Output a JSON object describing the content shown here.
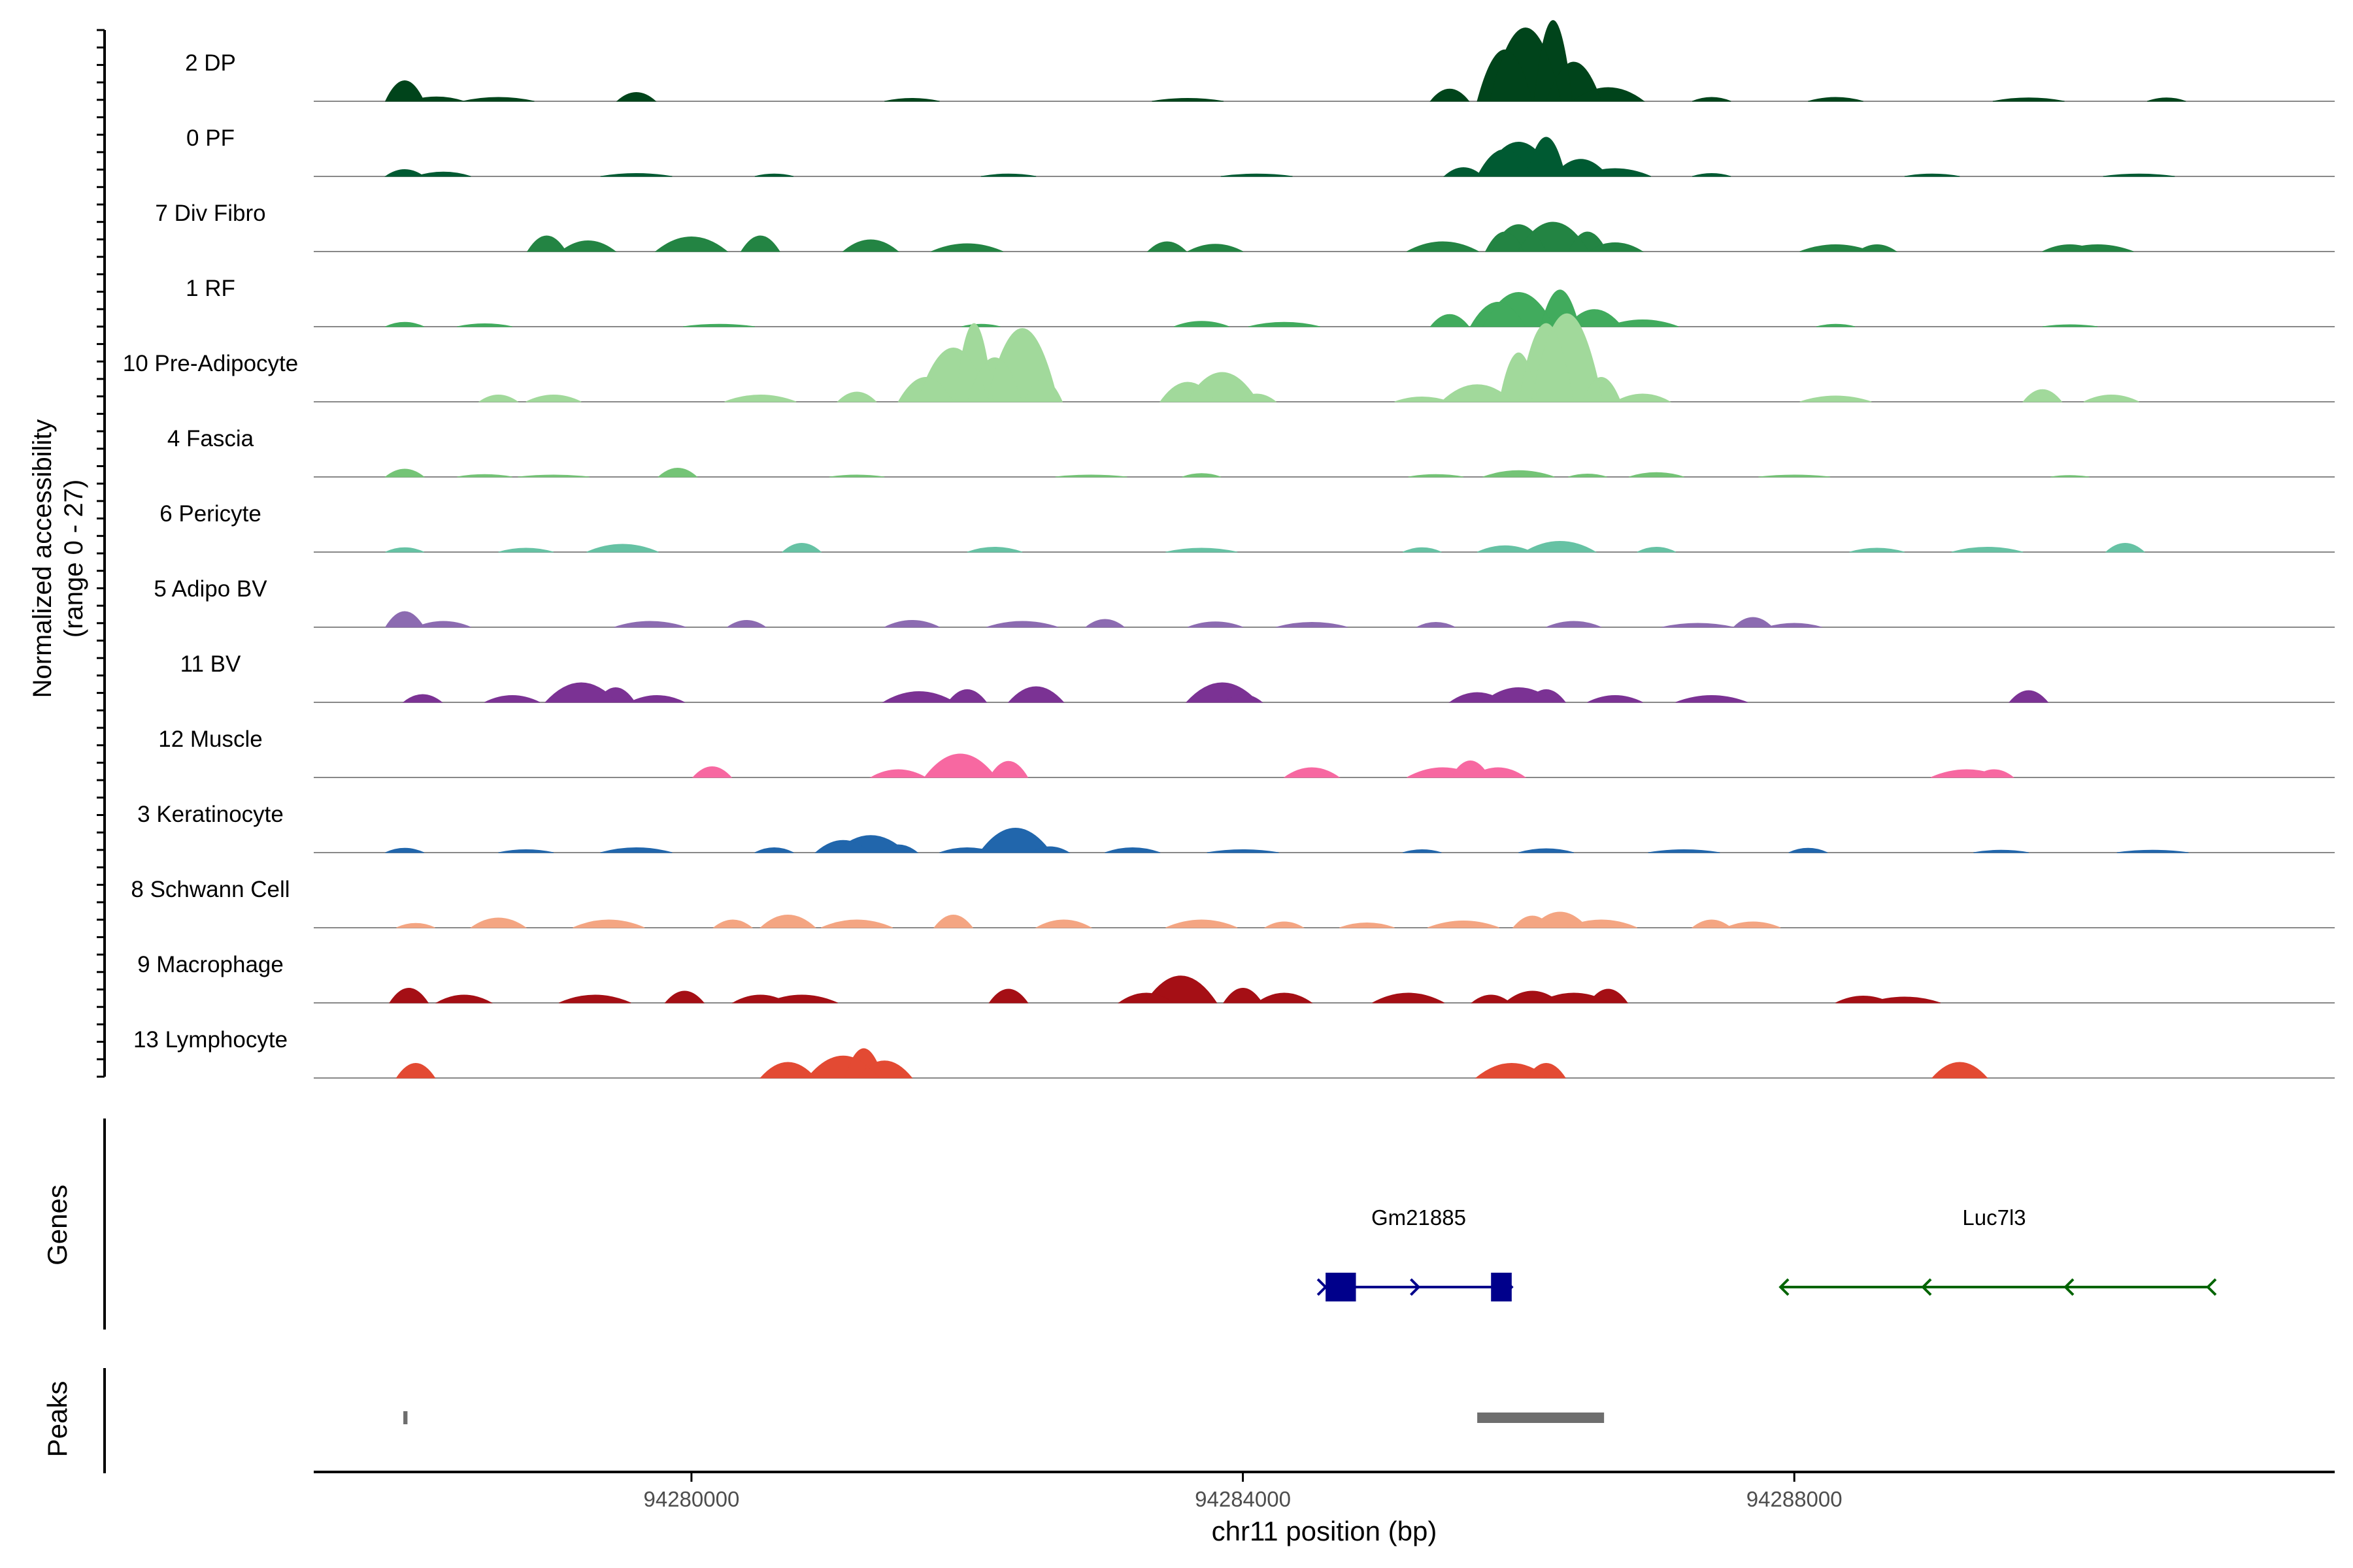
{
  "chart_data": {
    "type": "area",
    "subtype": "genome-coverage-track",
    "title": "",
    "xlabel": "chr11 position (bp)",
    "ylabel_line1": "Normalized accessibility",
    "ylabel_line2": "(range 0 - 27)",
    "genes_label": "Genes",
    "peaks_label": "Peaks",
    "y_range": [
      0,
      27
    ],
    "xlim": [
      94277260,
      94291920
    ],
    "x_ticks": [
      94280000,
      94284000,
      94288000
    ],
    "x_tick_labels": [
      "94280000",
      "94284000",
      "94288000"
    ],
    "grid": false,
    "legend": "none",
    "tracks": [
      {
        "name": "2 DP",
        "color": "#00441b",
        "profile": [
          [
            94277920,
            4.2
          ],
          [
            94278150,
            0.9
          ],
          [
            94278600,
            0.8
          ],
          [
            94279600,
            1.8
          ],
          [
            94281600,
            0.6
          ],
          [
            94283600,
            0.6
          ],
          [
            94285500,
            2.5
          ],
          [
            94285900,
            10.5
          ],
          [
            94286050,
            15.0
          ],
          [
            94286250,
            16.5
          ],
          [
            94286400,
            8.0
          ],
          [
            94286650,
            2.8
          ],
          [
            94287400,
            0.8
          ],
          [
            94288300,
            0.8
          ],
          [
            94289700,
            0.7
          ],
          [
            94290700,
            0.7
          ]
        ]
      },
      {
        "name": "0 PF",
        "color": "#005a32",
        "profile": [
          [
            94277920,
            1.4
          ],
          [
            94278200,
            0.9
          ],
          [
            94279600,
            0.6
          ],
          [
            94280600,
            0.5
          ],
          [
            94282300,
            0.5
          ],
          [
            94284100,
            0.5
          ],
          [
            94285600,
            1.8
          ],
          [
            94285900,
            5.5
          ],
          [
            94286000,
            7.0
          ],
          [
            94286200,
            8.0
          ],
          [
            94286450,
            3.5
          ],
          [
            94286700,
            1.6
          ],
          [
            94287400,
            0.6
          ],
          [
            94289000,
            0.5
          ],
          [
            94290500,
            0.5
          ]
        ]
      },
      {
        "name": "7 Div Fibro",
        "color": "#238443",
        "profile": [
          [
            94278950,
            3.2
          ],
          [
            94279250,
            2.2
          ],
          [
            94280000,
            3.0
          ],
          [
            94280500,
            3.2
          ],
          [
            94281300,
            2.4
          ],
          [
            94282000,
            1.6
          ],
          [
            94283450,
            2.0
          ],
          [
            94283800,
            1.5
          ],
          [
            94285450,
            2.0
          ],
          [
            94285900,
            4.0
          ],
          [
            94286000,
            5.5
          ],
          [
            94286250,
            6.0
          ],
          [
            94286500,
            4.0
          ],
          [
            94286700,
            1.8
          ],
          [
            94288300,
            1.4
          ],
          [
            94288600,
            1.4
          ],
          [
            94290000,
            1.4
          ],
          [
            94290200,
            1.4
          ]
        ]
      },
      {
        "name": "1 RF",
        "color": "#41ab5d",
        "profile": [
          [
            94277920,
            0.9
          ],
          [
            94278500,
            0.6
          ],
          [
            94280200,
            0.5
          ],
          [
            94282100,
            0.5
          ],
          [
            94283700,
            1.1
          ],
          [
            94284300,
            0.9
          ],
          [
            94285500,
            2.5
          ],
          [
            94285850,
            5.0
          ],
          [
            94286000,
            7.0
          ],
          [
            94286300,
            7.5
          ],
          [
            94286550,
            3.5
          ],
          [
            94286900,
            1.4
          ],
          [
            94288300,
            0.5
          ],
          [
            94290000,
            0.4
          ]
        ]
      },
      {
        "name": "10 Pre-Adipocyte",
        "color": "#a1d99b",
        "profile": [
          [
            94278600,
            1.4
          ],
          [
            94279000,
            1.4
          ],
          [
            94280500,
            1.4
          ],
          [
            94281200,
            2.0
          ],
          [
            94281700,
            5.0
          ],
          [
            94281900,
            11.0
          ],
          [
            94282050,
            16.0
          ],
          [
            94282200,
            9.0
          ],
          [
            94282400,
            15.0
          ],
          [
            94282550,
            4.5
          ],
          [
            94283600,
            4.0
          ],
          [
            94283850,
            6.0
          ],
          [
            94284100,
            1.6
          ],
          [
            94285300,
            1.0
          ],
          [
            94285700,
            3.5
          ],
          [
            94286000,
            10.0
          ],
          [
            94286200,
            16.0
          ],
          [
            94286350,
            18.0
          ],
          [
            94286600,
            5.0
          ],
          [
            94286900,
            1.6
          ],
          [
            94288300,
            1.2
          ],
          [
            94289800,
            2.5
          ],
          [
            94290300,
            1.4
          ]
        ]
      },
      {
        "name": "4 Fascia",
        "color": "#74c476",
        "profile": [
          [
            94277920,
            1.6
          ],
          [
            94278500,
            0.5
          ],
          [
            94279000,
            0.4
          ],
          [
            94279900,
            1.8
          ],
          [
            94281200,
            0.4
          ],
          [
            94282900,
            0.4
          ],
          [
            94283700,
            0.7
          ],
          [
            94285400,
            0.5
          ],
          [
            94286000,
            1.3
          ],
          [
            94286500,
            0.6
          ],
          [
            94287000,
            0.9
          ],
          [
            94288000,
            0.4
          ],
          [
            94290000,
            0.3
          ]
        ]
      },
      {
        "name": "6 Pericyte",
        "color": "#66c2a4",
        "profile": [
          [
            94277920,
            0.9
          ],
          [
            94278800,
            0.8
          ],
          [
            94279500,
            1.6
          ],
          [
            94280800,
            1.8
          ],
          [
            94282200,
            1.0
          ],
          [
            94283700,
            0.8
          ],
          [
            94285300,
            0.9
          ],
          [
            94285900,
            1.3
          ],
          [
            94286300,
            2.2
          ],
          [
            94287000,
            1.0
          ],
          [
            94288600,
            0.8
          ],
          [
            94289400,
            1.0
          ],
          [
            94290400,
            1.8
          ]
        ]
      },
      {
        "name": "5 Adipo BV",
        "color": "#8c6bb1",
        "profile": [
          [
            94277920,
            3.2
          ],
          [
            94278200,
            1.2
          ],
          [
            94279700,
            1.2
          ],
          [
            94280400,
            1.4
          ],
          [
            94281600,
            1.4
          ],
          [
            94282400,
            1.2
          ],
          [
            94283000,
            1.6
          ],
          [
            94283800,
            1.1
          ],
          [
            94284500,
            1.0
          ],
          [
            94285400,
            1.0
          ],
          [
            94286400,
            1.2
          ],
          [
            94287300,
            0.8
          ],
          [
            94287700,
            2.0
          ],
          [
            94288000,
            0.8
          ]
        ]
      },
      {
        "name": "11 BV",
        "color": "#7b3294",
        "profile": [
          [
            94278050,
            1.6
          ],
          [
            94278700,
            1.4
          ],
          [
            94279200,
            4.0
          ],
          [
            94279450,
            3.0
          ],
          [
            94279750,
            1.4
          ],
          [
            94281650,
            2.2
          ],
          [
            94282000,
            2.6
          ],
          [
            94282500,
            3.2
          ],
          [
            94283850,
            4.0
          ],
          [
            94284000,
            1.6
          ],
          [
            94285700,
            2.0
          ],
          [
            94286000,
            3.0
          ],
          [
            94286200,
            2.6
          ],
          [
            94286700,
            1.4
          ],
          [
            94287400,
            1.4
          ],
          [
            94289700,
            2.4
          ]
        ]
      },
      {
        "name": "12 Muscle",
        "color": "#f768a1",
        "profile": [
          [
            94280150,
            2.2
          ],
          [
            94281500,
            1.6
          ],
          [
            94281950,
            4.8
          ],
          [
            94282300,
            3.3
          ],
          [
            94284500,
            2.0
          ],
          [
            94285450,
            2.0
          ],
          [
            94285650,
            3.4
          ],
          [
            94285850,
            2.0
          ],
          [
            94289250,
            1.6
          ],
          [
            94289450,
            1.6
          ]
        ]
      },
      {
        "name": "3 Keratinocyte",
        "color": "#2166ac",
        "profile": [
          [
            94277920,
            0.9
          ],
          [
            94278800,
            0.6
          ],
          [
            94279600,
            1.0
          ],
          [
            94280600,
            1.0
          ],
          [
            94281100,
            2.5
          ],
          [
            94281300,
            3.5
          ],
          [
            94281500,
            1.6
          ],
          [
            94282000,
            1.0
          ],
          [
            94282350,
            5.0
          ],
          [
            94282600,
            1.2
          ],
          [
            94283200,
            1.0
          ],
          [
            94284000,
            0.6
          ],
          [
            94285300,
            0.6
          ],
          [
            94286200,
            0.8
          ],
          [
            94287200,
            0.6
          ],
          [
            94288100,
            0.9
          ],
          [
            94289500,
            0.5
          ],
          [
            94290600,
            0.5
          ]
        ]
      },
      {
        "name": "8 Schwann Cell",
        "color": "#f4a582",
        "profile": [
          [
            94278000,
            0.9
          ],
          [
            94278600,
            2.0
          ],
          [
            94279400,
            1.6
          ],
          [
            94280300,
            1.6
          ],
          [
            94280700,
            2.6
          ],
          [
            94281200,
            1.6
          ],
          [
            94281900,
            2.6
          ],
          [
            94282700,
            1.6
          ],
          [
            94283700,
            1.6
          ],
          [
            94284300,
            1.2
          ],
          [
            94284900,
            1.0
          ],
          [
            94285600,
            1.4
          ],
          [
            94286100,
            2.4
          ],
          [
            94286300,
            3.2
          ],
          [
            94286600,
            1.6
          ],
          [
            94287400,
            1.6
          ],
          [
            94287700,
            1.2
          ]
        ]
      },
      {
        "name": "9 Macrophage",
        "color": "#a50f15",
        "profile": [
          [
            94277950,
            3.0
          ],
          [
            94278350,
            1.6
          ],
          [
            94279300,
            1.6
          ],
          [
            94279950,
            2.4
          ],
          [
            94280500,
            1.6
          ],
          [
            94280800,
            1.6
          ],
          [
            94282300,
            2.8
          ],
          [
            94283300,
            2.0
          ],
          [
            94283550,
            5.5
          ],
          [
            94284000,
            3.0
          ],
          [
            94284300,
            2.0
          ],
          [
            94285200,
            2.0
          ],
          [
            94285800,
            1.6
          ],
          [
            94286100,
            2.4
          ],
          [
            94286400,
            2.0
          ],
          [
            94286650,
            2.8
          ],
          [
            94288500,
            1.4
          ],
          [
            94288800,
            1.2
          ]
        ]
      },
      {
        "name": "13 Lymphocyte",
        "color": "#e34a33",
        "profile": [
          [
            94278000,
            3.0
          ],
          [
            94280700,
            3.2
          ],
          [
            94281100,
            4.5
          ],
          [
            94281250,
            6.0
          ],
          [
            94281400,
            3.5
          ],
          [
            94285950,
            3.0
          ],
          [
            94286200,
            3.0
          ],
          [
            94289200,
            3.2
          ]
        ]
      }
    ],
    "genes": [
      {
        "name": "Gm21885",
        "start": 94284600,
        "end": 94285950,
        "strand": "+",
        "color": "#00008b",
        "exons": [
          [
            94284600,
            94284820
          ],
          [
            94285800,
            94285950
          ]
        ]
      },
      {
        "name": "Luc7l3",
        "start": 94287900,
        "end": 94291000,
        "strand": "-",
        "color": "#006400",
        "exons": []
      }
    ],
    "peaks": [
      {
        "start": 94277910,
        "end": 94277940,
        "color": "#6e6e6e"
      },
      {
        "start": 94285700,
        "end": 94286620,
        "color": "#6e6e6e"
      }
    ]
  }
}
